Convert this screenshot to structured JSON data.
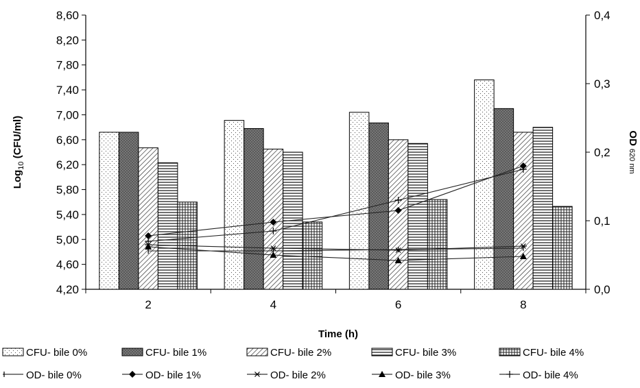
{
  "chart_data": {
    "type": "bar",
    "title": "",
    "xlabel": "Time (h)",
    "ylabel": "Log 10 (CFU/ml)",
    "ylabel_parts": {
      "main": "Log",
      "sub": "10",
      "rest": " (CFU/ml)"
    },
    "y2label": "OD 620 nm",
    "y2label_parts": {
      "main": "OD",
      "sub": "620 nm"
    },
    "ylim": [
      4.2,
      8.6
    ],
    "y2lim": [
      0.0,
      0.4
    ],
    "yticks": [
      4.2,
      4.6,
      5.0,
      5.4,
      5.8,
      6.2,
      6.6,
      7.0,
      7.4,
      7.8,
      8.2,
      8.6
    ],
    "ytick_labels": [
      "4,20",
      "4,60",
      "5,00",
      "5,40",
      "5,80",
      "6,20",
      "6,60",
      "7,00",
      "7,40",
      "7,80",
      "8,20",
      "8,60"
    ],
    "y2ticks": [
      0.0,
      0.1,
      0.2,
      0.3,
      0.4
    ],
    "y2tick_labels": [
      "0,0",
      "0,1",
      "0,2",
      "0,3",
      "0,4"
    ],
    "categories": [
      "2",
      "4",
      "6",
      "8"
    ],
    "grid": false,
    "legend_position": "bottom",
    "bar_series": [
      {
        "name": "CFU- bile 0%",
        "pattern": "dots",
        "values": [
          6.72,
          6.91,
          7.04,
          7.56
        ]
      },
      {
        "name": "CFU- bile 1%",
        "pattern": "crosshatch",
        "values": [
          6.72,
          6.78,
          6.87,
          7.1
        ]
      },
      {
        "name": "CFU- bile 2%",
        "pattern": "diagonal",
        "values": [
          6.47,
          6.45,
          6.6,
          6.72
        ]
      },
      {
        "name": "CFU- bile 3%",
        "pattern": "horizontal",
        "values": [
          6.23,
          6.4,
          6.54,
          6.8
        ]
      },
      {
        "name": "CFU- bile 4%",
        "pattern": "grid",
        "values": [
          5.6,
          5.28,
          5.64,
          5.53
        ]
      }
    ],
    "line_series": [
      {
        "name": "OD- bile 0%",
        "marker": "dash",
        "values": [
          0.056,
          0.056,
          0.058,
          0.06
        ]
      },
      {
        "name": "OD- bile 1%",
        "marker": "diamond",
        "values": [
          0.078,
          0.098,
          0.115,
          0.18
        ]
      },
      {
        "name": "OD- bile 2%",
        "marker": "star",
        "values": [
          0.065,
          0.06,
          0.057,
          0.063
        ]
      },
      {
        "name": "OD- bile 3%",
        "marker": "triangle",
        "values": [
          0.062,
          0.05,
          0.042,
          0.048
        ]
      },
      {
        "name": "OD- bile 4%",
        "marker": "plus",
        "values": [
          0.07,
          0.085,
          0.13,
          0.175
        ]
      }
    ]
  }
}
